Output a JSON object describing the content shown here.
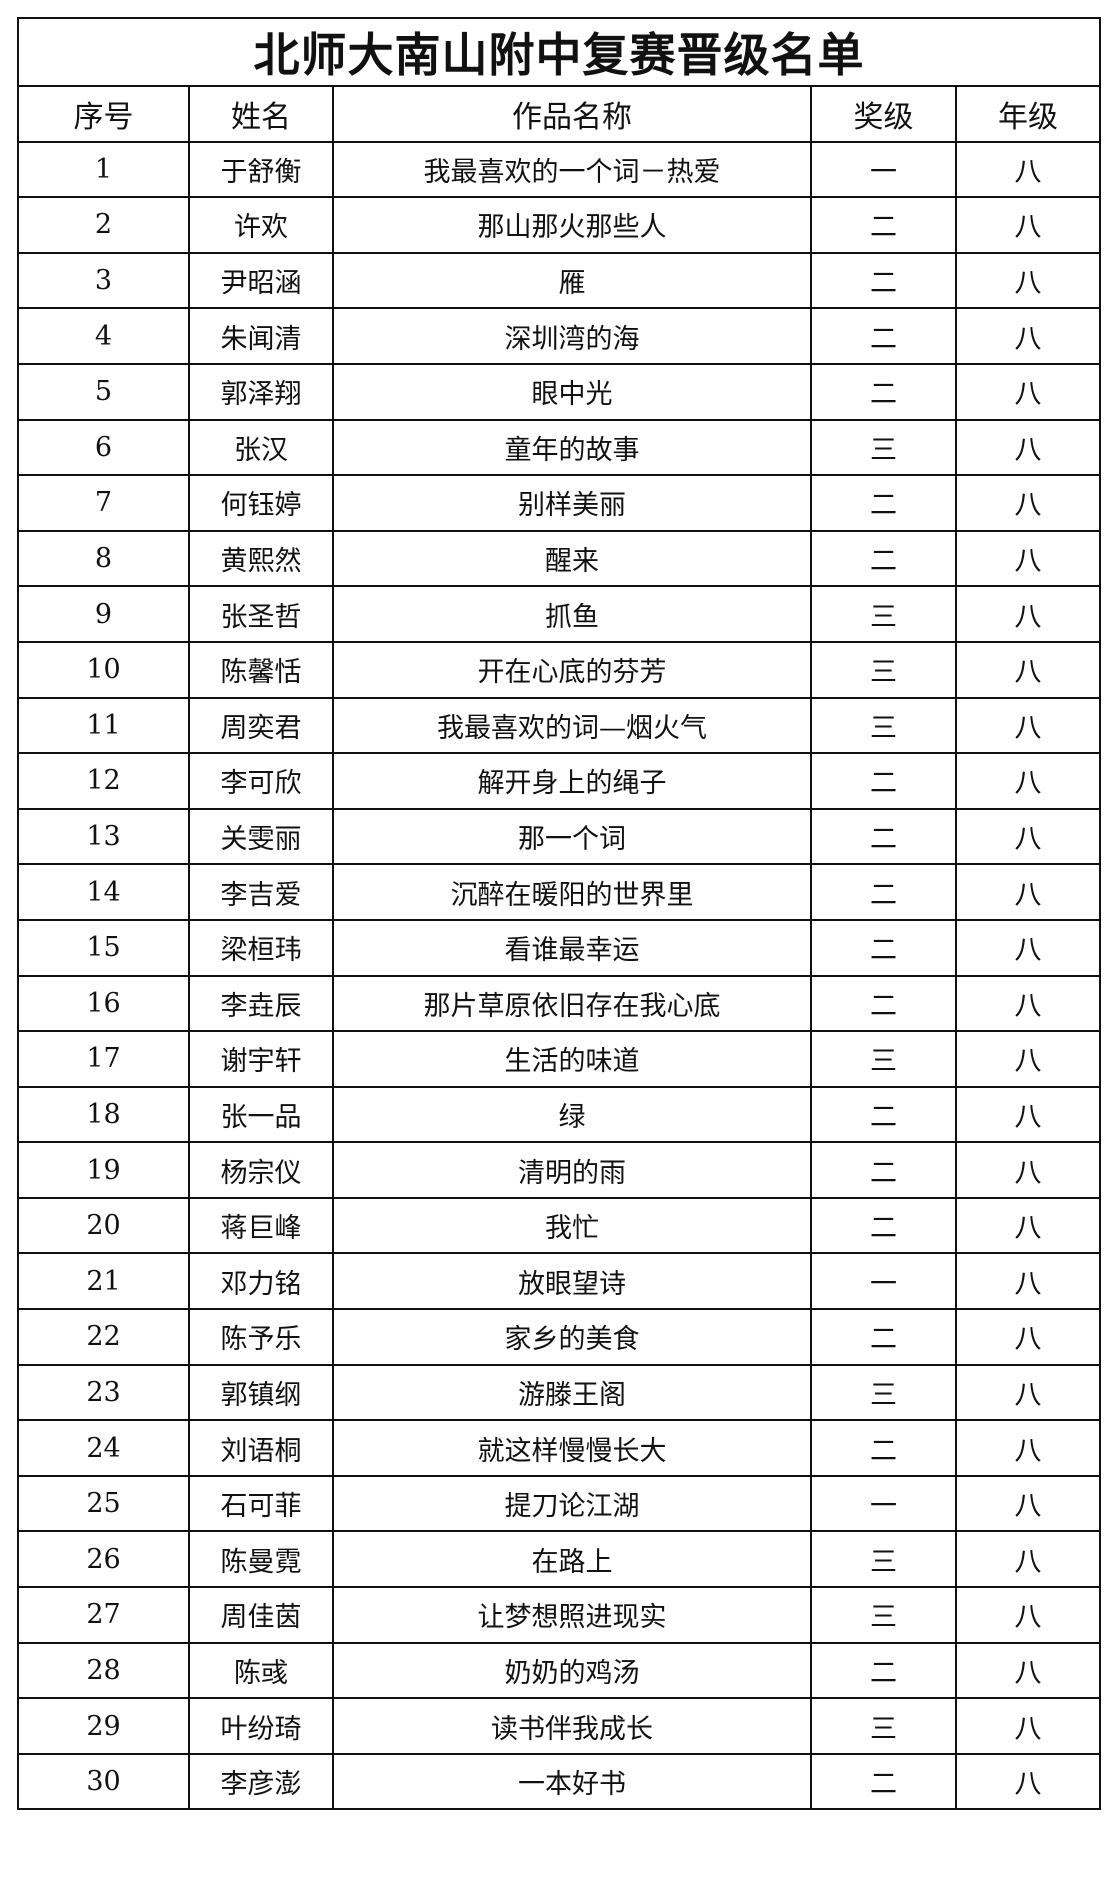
{
  "title": "北师大南山附中复赛晋级名单",
  "headers": [
    "序号",
    "姓名",
    "作品名称",
    "奖级",
    "年级"
  ],
  "rows": [
    [
      "1",
      "于舒衡",
      "我最喜欢的一个词－热爱",
      "一",
      "八"
    ],
    [
      "2",
      "许欢",
      "那山那火那些人",
      "二",
      "八"
    ],
    [
      "3",
      "尹昭涵",
      "雁",
      "二",
      "八"
    ],
    [
      "4",
      "朱闻清",
      "深圳湾的海",
      "二",
      "八"
    ],
    [
      "5",
      "郭泽翔",
      "眼中光",
      "二",
      "八"
    ],
    [
      "6",
      "张汉",
      "童年的故事",
      "三",
      "八"
    ],
    [
      "7",
      "何钰婷",
      "别样美丽",
      "二",
      "八"
    ],
    [
      "8",
      "黄熙然",
      "醒来",
      "二",
      "八"
    ],
    [
      "9",
      "张圣哲",
      "抓鱼",
      "三",
      "八"
    ],
    [
      "10",
      "陈馨恬",
      "开在心底的芬芳",
      "三",
      "八"
    ],
    [
      "11",
      "周奕君",
      "我最喜欢的词—烟火气",
      "三",
      "八"
    ],
    [
      "12",
      "李可欣",
      "解开身上的绳子",
      "二",
      "八"
    ],
    [
      "13",
      "关雯丽",
      "那一个词",
      "二",
      "八"
    ],
    [
      "14",
      "李吉爱",
      "沉醉在暖阳的世界里",
      "二",
      "八"
    ],
    [
      "15",
      "梁桓玮",
      "看谁最幸运",
      "二",
      "八"
    ],
    [
      "16",
      "李垚辰",
      "那片草原依旧存在我心底",
      "二",
      "八"
    ],
    [
      "17",
      "谢宇轩",
      "生活的味道",
      "三",
      "八"
    ],
    [
      "18",
      "张一品",
      "绿",
      "二",
      "八"
    ],
    [
      "19",
      "杨宗仪",
      "清明的雨",
      "二",
      "八"
    ],
    [
      "20",
      "蒋巨峰",
      "我忙",
      "二",
      "八"
    ],
    [
      "21",
      "邓力铭",
      "放眼望诗",
      "一",
      "八"
    ],
    [
      "22",
      "陈予乐",
      "家乡的美食",
      "二",
      "八"
    ],
    [
      "23",
      "郭镇纲",
      "游滕王阁",
      "三",
      "八"
    ],
    [
      "24",
      "刘语桐",
      "就这样慢慢长大",
      "二",
      "八"
    ],
    [
      "25",
      "石可菲",
      "提刀论江湖",
      "一",
      "八"
    ],
    [
      "26",
      "陈曼霓",
      "在路上",
      "三",
      "八"
    ],
    [
      "27",
      "周佳茵",
      "让梦想照进现实",
      "三",
      "八"
    ],
    [
      "28",
      "陈彧",
      "奶奶的鸡汤",
      "二",
      "八"
    ],
    [
      "29",
      "叶纷琦",
      "读书伴我成长",
      "三",
      "八"
    ],
    [
      "30",
      "李彦澎",
      "一本好书",
      "二",
      "八"
    ]
  ]
}
